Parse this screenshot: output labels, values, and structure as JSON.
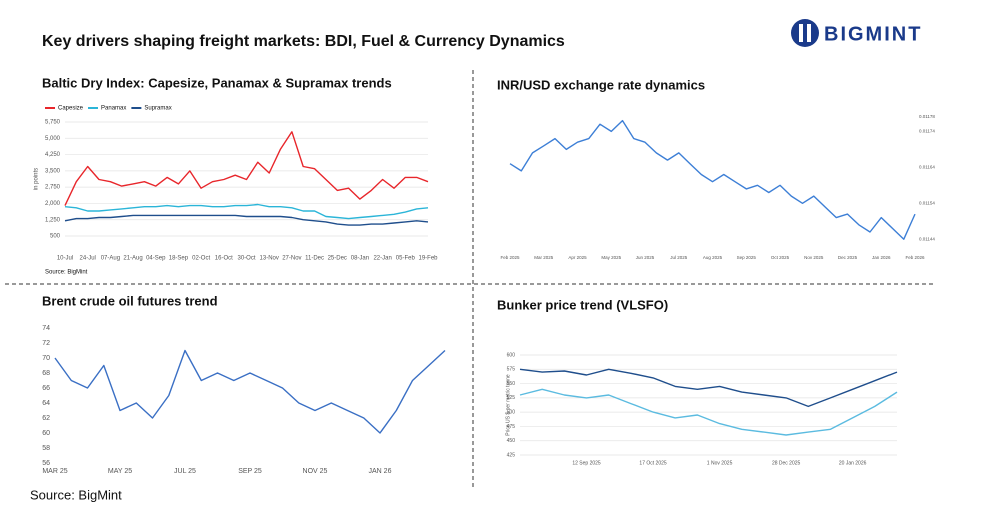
{
  "header": {
    "title": "Key drivers shaping freight markets: BDI, Fuel & Currency Dynamics",
    "logo": "BIGMINT"
  },
  "chart_data": [
    {
      "type": "line",
      "title": "Baltic Dry Index: Capesize, Panamax & Supramax trends",
      "y_label": "in points",
      "note": "Source: BigMint",
      "categories": [
        "10-Jul",
        null,
        "24-Jul",
        null,
        "07-Aug",
        null,
        "21-Aug",
        null,
        "04-Sep",
        null,
        "18-Sep",
        null,
        "02-Oct",
        null,
        "16-Oct",
        null,
        "30-Oct",
        null,
        "13-Nov",
        null,
        "27-Nov",
        null,
        "11-Dec",
        null,
        "25-Dec",
        null,
        "08-Jan",
        null,
        "22-Jan",
        null,
        "05-Feb",
        null,
        "19-Feb"
      ],
      "series": [
        {
          "name": "Capesize",
          "color": "#e8262b",
          "values": [
            1900,
            3000,
            3700,
            3100,
            3000,
            2800,
            2900,
            3000,
            2800,
            3200,
            2900,
            3500,
            2700,
            3000,
            3100,
            3300,
            3100,
            3900,
            3400,
            4500,
            5300,
            3700,
            3600,
            3100,
            2600,
            2700,
            2200,
            2600,
            3100,
            2700,
            3200,
            3200,
            3000
          ]
        },
        {
          "name": "Panamax",
          "color": "#2bb5d8",
          "values": [
            1850,
            1800,
            1650,
            1650,
            1700,
            1750,
            1800,
            1850,
            1850,
            1900,
            1850,
            1900,
            1900,
            1850,
            1850,
            1900,
            1900,
            1950,
            1850,
            1850,
            1800,
            1650,
            1650,
            1400,
            1350,
            1300,
            1350,
            1400,
            1450,
            1500,
            1600,
            1750,
            1800
          ]
        },
        {
          "name": "Supramax",
          "color": "#1f4e8c",
          "values": [
            1200,
            1300,
            1300,
            1350,
            1350,
            1400,
            1450,
            1450,
            1450,
            1450,
            1450,
            1450,
            1450,
            1450,
            1450,
            1450,
            1400,
            1400,
            1400,
            1400,
            1350,
            1250,
            1200,
            1150,
            1050,
            1000,
            1000,
            1050,
            1050,
            1100,
            1150,
            1200,
            1150
          ]
        }
      ],
      "ylim": [
        500,
        5750
      ],
      "yticks": [
        500,
        {
          "value": 1250,
          "label": "1,250"
        },
        {
          "value": 2000,
          "label": "2,000"
        },
        {
          "value": 2750,
          "label": "2,750"
        },
        {
          "value": 3500,
          "label": "3,500"
        },
        {
          "value": 4250,
          "label": "4,250"
        },
        {
          "value": 5000,
          "label": "5,000"
        },
        {
          "value": 5750,
          "label": "5,750"
        }
      ],
      "grid": true,
      "legend": "top-left"
    },
    {
      "type": "line",
      "title": "INR/USD exchange rate dynamics",
      "y_axis_side": "right",
      "categories": [
        "Feb 2025",
        null,
        null,
        "Mar 2025",
        null,
        null,
        "Apr 2025",
        null,
        null,
        "May 2025",
        null,
        null,
        "Jun 2025",
        null,
        null,
        "Jul 2025",
        null,
        null,
        "Aug 2025",
        null,
        null,
        "Sep 2025",
        null,
        null,
        "Oct 2025",
        null,
        null,
        "Nov 2025",
        null,
        null,
        "Dec 2025",
        null,
        null,
        "Jan 2026",
        null,
        null,
        "Feb 2026"
      ],
      "series": [
        {
          "color": "#3d7fd6",
          "values": [
            0.01165,
            0.01163,
            0.01168,
            0.0117,
            0.01172,
            0.01169,
            0.01171,
            0.01172,
            0.01176,
            0.01174,
            0.01177,
            0.01172,
            0.01171,
            0.01168,
            0.01166,
            0.01168,
            0.01165,
            0.01162,
            0.0116,
            0.01162,
            0.0116,
            0.01158,
            0.01159,
            0.01157,
            0.01159,
            0.01156,
            0.01154,
            0.01156,
            0.01153,
            0.0115,
            0.01151,
            0.01148,
            0.01146,
            0.0115,
            0.01147,
            0.01144,
            0.01151
          ]
        }
      ],
      "ylim": [
        0.01141,
        0.01178
      ],
      "yticks": [
        0.01144,
        0.01154,
        0.01164,
        0.01174,
        0.01178
      ],
      "grid": false
    },
    {
      "type": "line",
      "title": "Brent crude oil futures trend",
      "categories": [
        "MAR 25",
        null,
        null,
        null,
        "MAY 25",
        null,
        null,
        null,
        "JUL 25",
        null,
        null,
        null,
        "SEP 25",
        null,
        null,
        null,
        "NOV 25",
        null,
        null,
        null,
        "JAN 26",
        null,
        null,
        null,
        null
      ],
      "series": [
        {
          "color": "#3a6fc4",
          "values": [
            70,
            67,
            66,
            69,
            63,
            64,
            62,
            65,
            71,
            67,
            68,
            67,
            68,
            67,
            66,
            64,
            63,
            64,
            63,
            62,
            60,
            63,
            67,
            69,
            71
          ]
        }
      ],
      "ylim": [
        56,
        74
      ],
      "yticks": [
        56,
        58,
        60,
        62,
        64,
        66,
        68,
        70,
        72,
        74
      ],
      "grid": false
    },
    {
      "type": "line",
      "title": "Bunker price trend (VLSFO)",
      "y_label": "Price US $ per metric tonne",
      "categories": [
        null,
        null,
        null,
        "12 Sep 2025",
        null,
        null,
        "17 Oct 2025",
        null,
        null,
        "1 Nov 2025",
        null,
        null,
        "28 Dec 2025",
        null,
        null,
        "20 Jan 2026",
        null,
        null
      ],
      "series": [
        {
          "color": "#1f4e8c",
          "values": [
            575,
            570,
            572,
            565,
            575,
            568,
            560,
            545,
            540,
            545,
            535,
            530,
            525,
            510,
            525,
            540,
            555,
            570
          ]
        },
        {
          "color": "#5bbbe0",
          "values": [
            530,
            540,
            530,
            525,
            530,
            515,
            500,
            490,
            495,
            480,
            470,
            465,
            460,
            465,
            470,
            490,
            510,
            535
          ]
        }
      ],
      "ylim": [
        425,
        600
      ],
      "yticks": [
        425,
        450,
        475,
        500,
        525,
        550,
        575,
        600
      ],
      "grid": true
    }
  ],
  "footer": {
    "source": "Source: BigMint"
  }
}
